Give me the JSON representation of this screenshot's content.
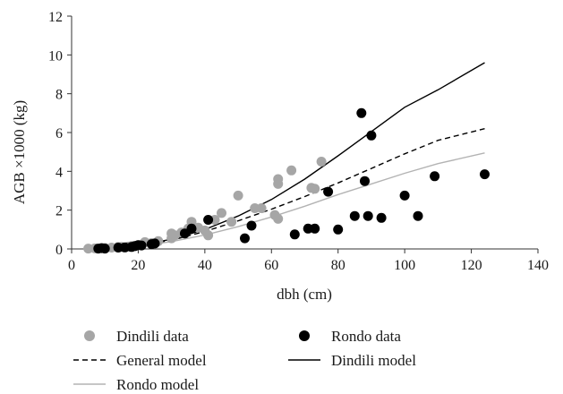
{
  "chart_data": {
    "type": "scatter",
    "xlabel": "dbh (cm)",
    "ylabel": "AGB ×1000 (kg)",
    "xlim": [
      0,
      140
    ],
    "ylim": [
      0,
      12
    ],
    "x_ticks": [
      "0",
      "20",
      "40",
      "60",
      "80",
      "100",
      "120",
      "140"
    ],
    "y_ticks": [
      "0",
      "2",
      "4",
      "6",
      "8",
      "10",
      "12"
    ],
    "grid": false,
    "legend_position": "bottom",
    "series": [
      {
        "name": "Dindili data",
        "kind": "scatter",
        "color": "#a6a6a6",
        "points": [
          [
            5,
            0.02
          ],
          [
            7,
            0.03
          ],
          [
            9,
            0.04
          ],
          [
            10,
            0.05
          ],
          [
            12,
            0.07
          ],
          [
            14,
            0.1
          ],
          [
            15,
            0.1
          ],
          [
            17,
            0.12
          ],
          [
            18,
            0.15
          ],
          [
            19,
            0.15
          ],
          [
            20,
            0.2
          ],
          [
            21,
            0.22
          ],
          [
            22,
            0.35
          ],
          [
            24,
            0.3
          ],
          [
            26,
            0.4
          ],
          [
            30,
            0.55
          ],
          [
            30,
            0.8
          ],
          [
            31,
            0.7
          ],
          [
            33,
            0.85
          ],
          [
            35,
            1.05
          ],
          [
            36,
            1.4
          ],
          [
            38,
            1.1
          ],
          [
            40,
            0.95
          ],
          [
            41,
            0.7
          ],
          [
            43,
            1.5
          ],
          [
            45,
            1.85
          ],
          [
            48,
            1.4
          ],
          [
            50,
            2.75
          ],
          [
            55,
            2.1
          ],
          [
            57,
            2.1
          ],
          [
            61,
            1.75
          ],
          [
            62,
            1.55
          ],
          [
            62,
            3.35
          ],
          [
            62,
            3.6
          ],
          [
            66,
            4.05
          ],
          [
            72,
            3.15
          ],
          [
            73,
            3.1
          ],
          [
            75,
            4.5
          ]
        ]
      },
      {
        "name": "Rondo data",
        "kind": "scatter",
        "color": "#000000",
        "points": [
          [
            8,
            0.02
          ],
          [
            9,
            0.04
          ],
          [
            10,
            0.02
          ],
          [
            14,
            0.07
          ],
          [
            16,
            0.08
          ],
          [
            18,
            0.1
          ],
          [
            19,
            0.15
          ],
          [
            20,
            0.2
          ],
          [
            21,
            0.18
          ],
          [
            24,
            0.25
          ],
          [
            25,
            0.28
          ],
          [
            34,
            0.8
          ],
          [
            36,
            1.05
          ],
          [
            41,
            1.5
          ],
          [
            52,
            0.55
          ],
          [
            54,
            1.2
          ],
          [
            67,
            0.75
          ],
          [
            71,
            1.05
          ],
          [
            73,
            1.05
          ],
          [
            77,
            2.95
          ],
          [
            80,
            1.0
          ],
          [
            85,
            1.7
          ],
          [
            87,
            7.0
          ],
          [
            88,
            3.5
          ],
          [
            89,
            1.7
          ],
          [
            90,
            5.85
          ],
          [
            93,
            1.6
          ],
          [
            100,
            2.75
          ],
          [
            104,
            1.7
          ],
          [
            109,
            3.75
          ],
          [
            124,
            3.85
          ]
        ]
      },
      {
        "name": "General model",
        "kind": "line",
        "style": "dashed",
        "color": "#000000",
        "points": [
          [
            5,
            0.003
          ],
          [
            10,
            0.03
          ],
          [
            20,
            0.16
          ],
          [
            30,
            0.45
          ],
          [
            40,
            0.9
          ],
          [
            50,
            1.45
          ],
          [
            60,
            2.05
          ],
          [
            70,
            2.7
          ],
          [
            80,
            3.4
          ],
          [
            90,
            4.15
          ],
          [
            100,
            4.9
          ],
          [
            110,
            5.6
          ],
          [
            124,
            6.2
          ]
        ]
      },
      {
        "name": "Dindili model",
        "kind": "line",
        "style": "solid",
        "color": "#000000",
        "points": [
          [
            5,
            0.003
          ],
          [
            10,
            0.03
          ],
          [
            20,
            0.18
          ],
          [
            30,
            0.5
          ],
          [
            40,
            1.0
          ],
          [
            50,
            1.7
          ],
          [
            60,
            2.55
          ],
          [
            70,
            3.6
          ],
          [
            80,
            4.8
          ],
          [
            90,
            6.05
          ],
          [
            100,
            7.3
          ],
          [
            110,
            8.2
          ],
          [
            124,
            9.6
          ]
        ]
      },
      {
        "name": "Rondo model",
        "kind": "line",
        "style": "solid",
        "color": "#b3b3b3",
        "points": [
          [
            5,
            0.003
          ],
          [
            10,
            0.03
          ],
          [
            20,
            0.14
          ],
          [
            30,
            0.38
          ],
          [
            40,
            0.72
          ],
          [
            50,
            1.15
          ],
          [
            60,
            1.65
          ],
          [
            70,
            2.2
          ],
          [
            80,
            2.8
          ],
          [
            90,
            3.35
          ],
          [
            100,
            3.9
          ],
          [
            110,
            4.4
          ],
          [
            124,
            4.95
          ]
        ]
      }
    ]
  },
  "legend": [
    {
      "label": "Dindili data",
      "kind": "dot",
      "color": "#a6a6a6"
    },
    {
      "label": "Rondo data",
      "kind": "dot",
      "color": "#000000"
    },
    {
      "label": "General model",
      "kind": "dashed",
      "color": "#000000"
    },
    {
      "label": "Dindili model",
      "kind": "solid",
      "color": "#000000"
    },
    {
      "label": "Rondo model",
      "kind": "solid",
      "color": "#b3b3b3"
    }
  ]
}
